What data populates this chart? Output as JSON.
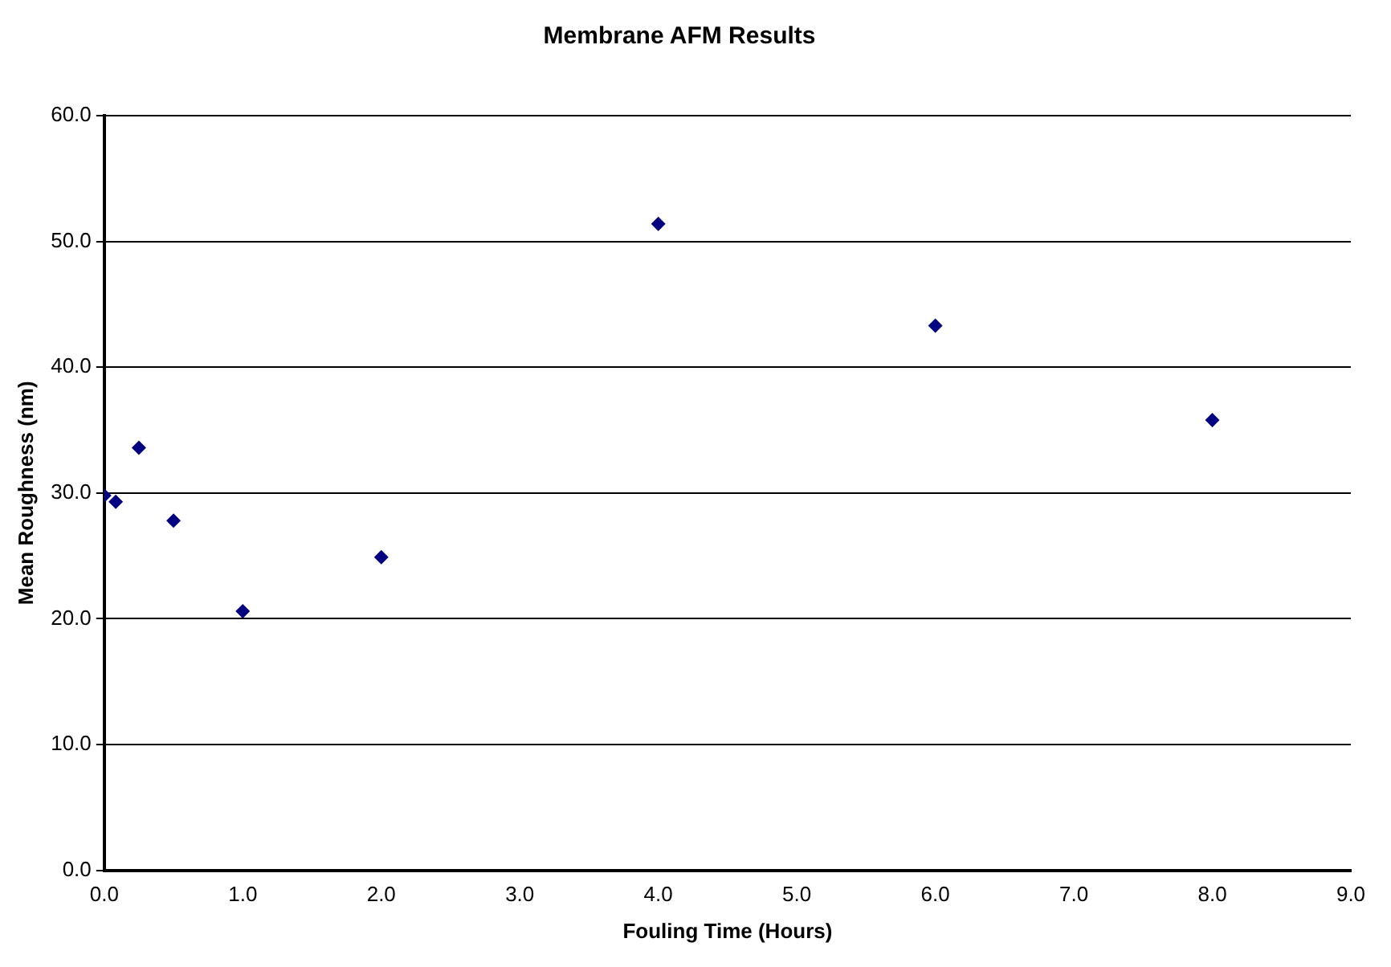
{
  "chart_data": {
    "type": "scatter",
    "title": "Membrane AFM Results",
    "xlabel": "Fouling Time (Hours)",
    "ylabel": "Mean Roughness (nm)",
    "x": [
      0,
      0.083,
      0.25,
      0.5,
      1,
      2,
      4,
      6,
      8
    ],
    "series": [
      {
        "color": "#000080",
        "values": [
          29.8,
          29.3,
          33.6,
          27.8,
          20.6,
          24.9,
          51.4,
          43.3,
          35.8
        ]
      }
    ],
    "xlim": [
      0,
      9
    ],
    "ylim": [
      0,
      60
    ],
    "xticks": [
      {
        "value": 0,
        "label": "0.0"
      },
      {
        "value": 1,
        "label": "1.0"
      },
      {
        "value": 2,
        "label": "2.0"
      },
      {
        "value": 3,
        "label": "3.0"
      },
      {
        "value": 4,
        "label": "4.0"
      },
      {
        "value": 5,
        "label": "5.0"
      },
      {
        "value": 6,
        "label": "6.0"
      },
      {
        "value": 7,
        "label": "7.0"
      },
      {
        "value": 8,
        "label": "8.0"
      },
      {
        "value": 9,
        "label": "9.0"
      }
    ],
    "yticks": [
      {
        "value": 0,
        "label": "0.0"
      },
      {
        "value": 10,
        "label": "10.0"
      },
      {
        "value": 20,
        "label": "20.0"
      },
      {
        "value": 30,
        "label": "30.0"
      },
      {
        "value": 40,
        "label": "40.0"
      },
      {
        "value": 50,
        "label": "50.0"
      },
      {
        "value": 60,
        "label": "60.0"
      }
    ],
    "grid": "y",
    "legend": false,
    "marker": "diamond"
  }
}
